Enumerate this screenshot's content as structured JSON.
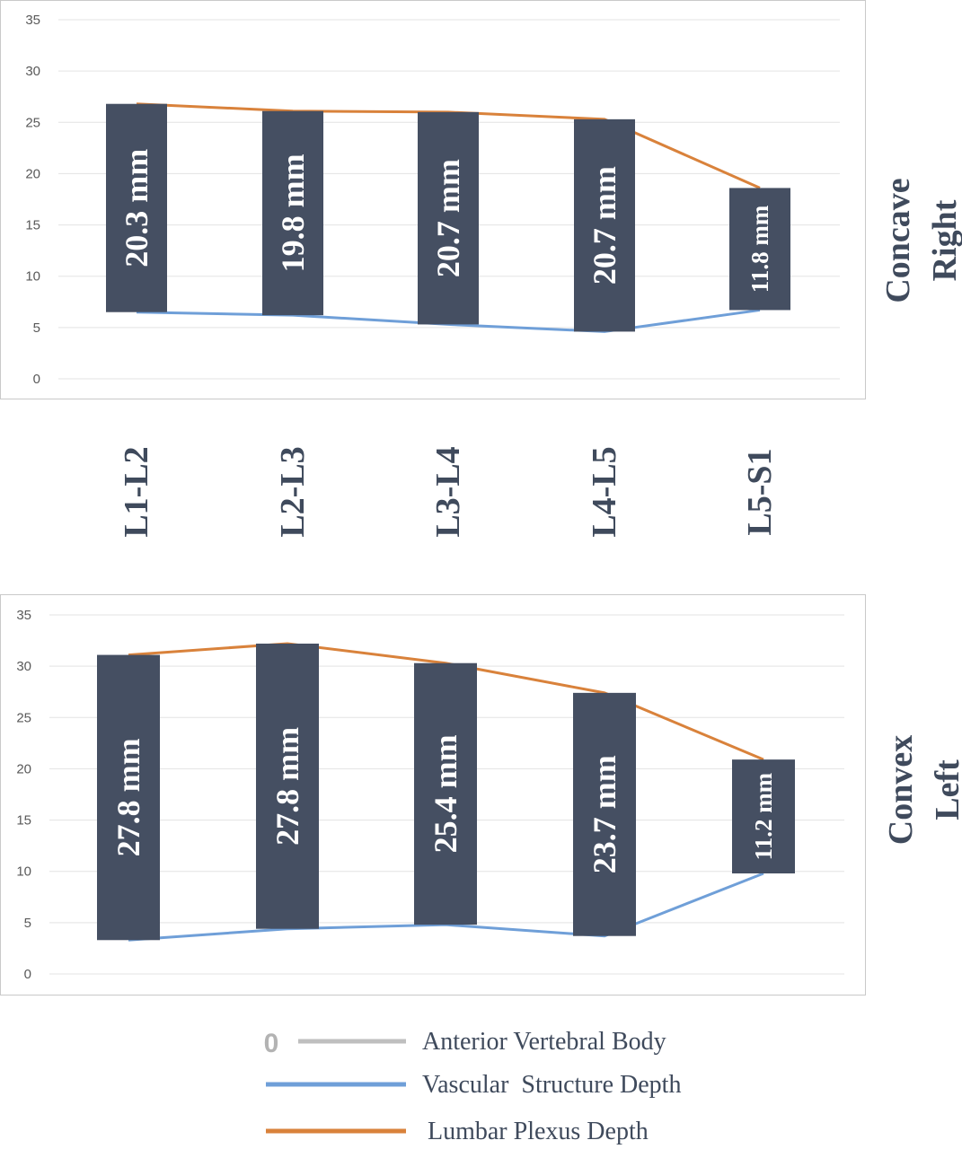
{
  "chart_data": [
    {
      "type": "bar",
      "name": "Concave Right",
      "side_label_lines": [
        "Concave",
        "Right"
      ],
      "categories": [
        "L1-L2",
        "L2-L3",
        "L3-L4",
        "L4-L5",
        "L5-S1"
      ],
      "ylim": [
        0,
        35
      ],
      "yticks": [
        "0",
        "5",
        "10",
        "15",
        "20",
        "25",
        "30",
        "35"
      ],
      "grid": true,
      "series": [
        {
          "name": "Vascular  Structure Depth",
          "values": [
            6.5,
            6.2,
            5.3,
            4.6,
            6.7
          ]
        },
        {
          "name": "Lumbar Plexus Depth",
          "values": [
            26.8,
            26.1,
            26.0,
            25.3,
            18.6
          ]
        }
      ],
      "bar_labels": [
        "20.3 mm",
        "19.8 mm",
        "20.7 mm",
        "20.7 mm",
        "11.8 mm"
      ]
    },
    {
      "type": "bar",
      "name": "Convex Left",
      "side_label_lines": [
        "Convex",
        "Left"
      ],
      "categories": [
        "L1-L2",
        "L2-L3",
        "L3-L4",
        "L4-L5",
        "L5-S1"
      ],
      "ylim": [
        0,
        35
      ],
      "yticks": [
        "0",
        "5",
        "10",
        "15",
        "20",
        "25",
        "30",
        "35"
      ],
      "grid": true,
      "series": [
        {
          "name": "Vascular  Structure Depth",
          "values": [
            3.3,
            4.4,
            4.8,
            3.7,
            9.8
          ]
        },
        {
          "name": "Lumbar Plexus Depth",
          "values": [
            31.1,
            32.2,
            30.3,
            27.4,
            20.9
          ]
        }
      ],
      "bar_labels": [
        "27.8 mm",
        "27.8 mm",
        "25.4 mm",
        "23.7 mm",
        "11.2 mm"
      ]
    }
  ],
  "legend": {
    "zero_marker": "0",
    "items": [
      {
        "label": "Anterior Vertebral Body",
        "color": "#bfbfbf"
      },
      {
        "label": "Vascular  Structure Depth",
        "color": "#6f9fd8"
      },
      {
        "label": "Lumbar Plexus Depth",
        "color": "#d9823b"
      }
    ]
  },
  "colors": {
    "bar": "#454f62",
    "vascular": "#6f9fd8",
    "plexus": "#d9823b",
    "grid": "#e3e3e3"
  }
}
